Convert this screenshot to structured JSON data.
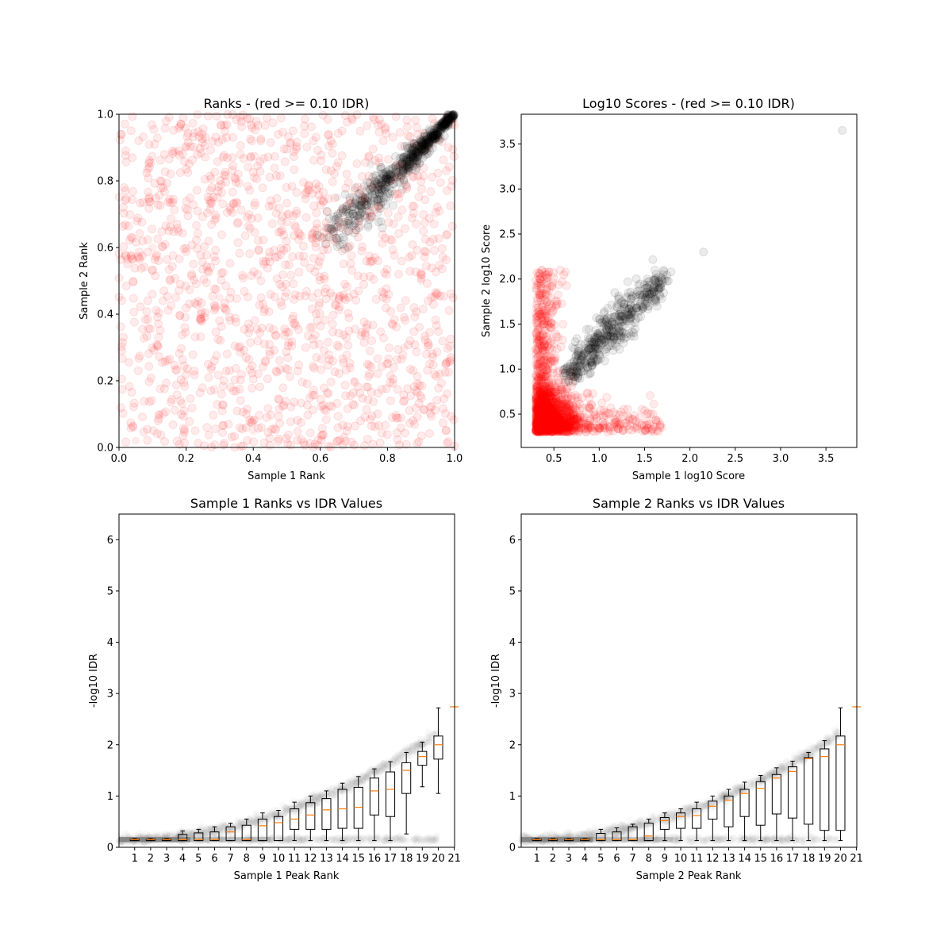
{
  "chart_data": [
    {
      "type": "scatter",
      "title": "Ranks - (red >= 0.10 IDR)",
      "xlabel": "Sample 1 Rank",
      "ylabel": "Sample 2 Rank",
      "xlim": [
        0,
        1
      ],
      "ylim": [
        0,
        1
      ],
      "xticks": [
        "0.0",
        "0.2",
        "0.4",
        "0.6",
        "0.8",
        "1.0"
      ],
      "yticks": [
        "0.0",
        "0.2",
        "0.4",
        "0.6",
        "0.8",
        "1.0"
      ],
      "series": [
        {
          "color": "#ff0000",
          "alpha": 0.08,
          "description_of_points": "peaks with IDR >= 0.10, spread uniformly over ranks"
        },
        {
          "color": "#000000",
          "alpha": 0.08,
          "description_of_points": "reproducible peaks concentrated along diagonal from (0.6,0.6) to (1,1)"
        }
      ],
      "points_red": [
        [
          0.05,
          0.02
        ],
        [
          0.12,
          0.1
        ],
        [
          0.3,
          0.45
        ],
        [
          0.5,
          0.7
        ],
        [
          0.2,
          0.9
        ],
        [
          0.7,
          0.2
        ],
        [
          0.9,
          0.5
        ],
        [
          0.4,
          0.05
        ],
        [
          0.85,
          0.3
        ],
        [
          0.1,
          0.6
        ]
      ],
      "points_black": [
        [
          0.62,
          0.63
        ],
        [
          0.7,
          0.72
        ],
        [
          0.8,
          0.78
        ],
        [
          0.9,
          0.92
        ],
        [
          0.97,
          0.98
        ],
        [
          0.75,
          0.85
        ],
        [
          0.85,
          0.8
        ],
        [
          0.65,
          0.75
        ]
      ]
    },
    {
      "type": "scatter",
      "title": "Log10 Scores - (red >= 0.10 IDR)",
      "xlabel": "Sample 1 log10 Score",
      "ylabel": "Sample 2 log10 Score",
      "xlim": [
        0.14,
        3.84
      ],
      "ylim": [
        0.13,
        3.83
      ],
      "xticks": [
        "0.5",
        "1.0",
        "1.5",
        "2.0",
        "2.5",
        "3.0",
        "3.5"
      ],
      "yticks": [
        "0.5",
        "1.0",
        "1.5",
        "2.0",
        "2.5",
        "3.0",
        "3.5"
      ],
      "points_black_outliers": [
        [
          3.68,
          3.65
        ],
        [
          2.15,
          2.3
        ]
      ],
      "red_cluster": {
        "x_range": [
          0.3,
          1.7
        ],
        "y_range": [
          0.3,
          2.1
        ]
      },
      "black_cluster": {
        "x_range": [
          0.6,
          1.75
        ],
        "y_range": [
          0.9,
          2.1
        ]
      }
    },
    {
      "type": "box",
      "title": "Sample 1 Ranks vs IDR Values",
      "xlabel": "Sample 1 Peak Rank",
      "ylabel": "-log10 IDR",
      "ylim": [
        0,
        6.5
      ],
      "yticks": [
        "0",
        "1",
        "2",
        "3",
        "4",
        "5",
        "6"
      ],
      "categories": [
        "1",
        "2",
        "3",
        "4",
        "5",
        "6",
        "7",
        "8",
        "9",
        "10",
        "11",
        "12",
        "13",
        "14",
        "15",
        "16",
        "17",
        "18",
        "19",
        "20",
        "21"
      ],
      "boxes": [
        {
          "q1": 0.13,
          "med": 0.15,
          "q3": 0.16,
          "wlo": 0.13,
          "whi": 0.17
        },
        {
          "q1": 0.13,
          "med": 0.15,
          "q3": 0.16,
          "wlo": 0.13,
          "whi": 0.17
        },
        {
          "q1": 0.13,
          "med": 0.15,
          "q3": 0.16,
          "wlo": 0.13,
          "whi": 0.17
        },
        {
          "q1": 0.13,
          "med": 0.15,
          "q3": 0.25,
          "wlo": 0.13,
          "whi": 0.32
        },
        {
          "q1": 0.13,
          "med": 0.15,
          "q3": 0.28,
          "wlo": 0.13,
          "whi": 0.35
        },
        {
          "q1": 0.13,
          "med": 0.15,
          "q3": 0.3,
          "wlo": 0.13,
          "whi": 0.4
        },
        {
          "q1": 0.13,
          "med": 0.3,
          "q3": 0.4,
          "wlo": 0.13,
          "whi": 0.47
        },
        {
          "q1": 0.13,
          "med": 0.15,
          "q3": 0.43,
          "wlo": 0.13,
          "whi": 0.55
        },
        {
          "q1": 0.13,
          "med": 0.42,
          "q3": 0.55,
          "wlo": 0.13,
          "whi": 0.67
        },
        {
          "q1": 0.13,
          "med": 0.48,
          "q3": 0.6,
          "wlo": 0.13,
          "whi": 0.72
        },
        {
          "q1": 0.35,
          "med": 0.55,
          "q3": 0.75,
          "wlo": 0.13,
          "whi": 0.88
        },
        {
          "q1": 0.35,
          "med": 0.63,
          "q3": 0.87,
          "wlo": 0.13,
          "whi": 1.0
        },
        {
          "q1": 0.35,
          "med": 0.73,
          "q3": 0.95,
          "wlo": 0.13,
          "whi": 1.1
        },
        {
          "q1": 0.37,
          "med": 0.75,
          "q3": 1.13,
          "wlo": 0.13,
          "whi": 1.25
        },
        {
          "q1": 0.37,
          "med": 0.78,
          "q3": 1.17,
          "wlo": 0.13,
          "whi": 1.38
        },
        {
          "q1": 0.63,
          "med": 1.1,
          "q3": 1.35,
          "wlo": 0.13,
          "whi": 1.53
        },
        {
          "q1": 0.6,
          "med": 1.13,
          "q3": 1.47,
          "wlo": 0.13,
          "whi": 1.67
        },
        {
          "q1": 1.05,
          "med": 1.5,
          "q3": 1.65,
          "wlo": 0.26,
          "whi": 1.85
        },
        {
          "q1": 1.6,
          "med": 1.77,
          "q3": 1.87,
          "wlo": 1.18,
          "whi": 2.05
        },
        {
          "q1": 1.72,
          "med": 2.0,
          "q3": 2.17,
          "wlo": 1.05,
          "whi": 2.72
        },
        {
          "q1": 2.74,
          "med": 2.74,
          "q3": 2.74,
          "wlo": 2.74,
          "whi": 2.74
        }
      ]
    },
    {
      "type": "box",
      "title": "Sample 2 Ranks vs IDR Values",
      "xlabel": "Sample 2 Peak Rank",
      "ylabel": "-log10 IDR",
      "ylim": [
        0,
        6.5
      ],
      "yticks": [
        "0",
        "1",
        "2",
        "3",
        "4",
        "5",
        "6"
      ],
      "categories": [
        "1",
        "2",
        "3",
        "4",
        "5",
        "6",
        "7",
        "8",
        "9",
        "10",
        "11",
        "12",
        "13",
        "14",
        "15",
        "16",
        "17",
        "18",
        "19",
        "20",
        "21"
      ],
      "boxes": [
        {
          "q1": 0.13,
          "med": 0.15,
          "q3": 0.16,
          "wlo": 0.13,
          "whi": 0.17
        },
        {
          "q1": 0.13,
          "med": 0.15,
          "q3": 0.16,
          "wlo": 0.13,
          "whi": 0.17
        },
        {
          "q1": 0.13,
          "med": 0.15,
          "q3": 0.16,
          "wlo": 0.13,
          "whi": 0.17
        },
        {
          "q1": 0.13,
          "med": 0.15,
          "q3": 0.16,
          "wlo": 0.13,
          "whi": 0.17
        },
        {
          "q1": 0.13,
          "med": 0.15,
          "q3": 0.27,
          "wlo": 0.13,
          "whi": 0.35
        },
        {
          "q1": 0.13,
          "med": 0.15,
          "q3": 0.3,
          "wlo": 0.13,
          "whi": 0.38
        },
        {
          "q1": 0.13,
          "med": 0.15,
          "q3": 0.4,
          "wlo": 0.13,
          "whi": 0.45
        },
        {
          "q1": 0.13,
          "med": 0.22,
          "q3": 0.47,
          "wlo": 0.13,
          "whi": 0.55
        },
        {
          "q1": 0.35,
          "med": 0.52,
          "q3": 0.58,
          "wlo": 0.13,
          "whi": 0.67
        },
        {
          "q1": 0.37,
          "med": 0.6,
          "q3": 0.67,
          "wlo": 0.13,
          "whi": 0.75
        },
        {
          "q1": 0.37,
          "med": 0.62,
          "q3": 0.75,
          "wlo": 0.13,
          "whi": 0.88
        },
        {
          "q1": 0.55,
          "med": 0.8,
          "q3": 0.9,
          "wlo": 0.13,
          "whi": 1.0
        },
        {
          "q1": 0.4,
          "med": 0.92,
          "q3": 1.0,
          "wlo": 0.13,
          "whi": 1.13
        },
        {
          "q1": 0.6,
          "med": 1.05,
          "q3": 1.13,
          "wlo": 0.13,
          "whi": 1.27
        },
        {
          "q1": 0.43,
          "med": 1.15,
          "q3": 1.28,
          "wlo": 0.13,
          "whi": 1.4
        },
        {
          "q1": 0.65,
          "med": 1.35,
          "q3": 1.42,
          "wlo": 0.13,
          "whi": 1.55
        },
        {
          "q1": 0.57,
          "med": 1.48,
          "q3": 1.57,
          "wlo": 0.13,
          "whi": 1.68
        },
        {
          "q1": 0.45,
          "med": 1.73,
          "q3": 1.75,
          "wlo": 0.13,
          "whi": 1.85
        },
        {
          "q1": 0.33,
          "med": 1.77,
          "q3": 1.92,
          "wlo": 0.13,
          "whi": 2.08
        },
        {
          "q1": 0.33,
          "med": 2.0,
          "q3": 2.17,
          "wlo": 0.13,
          "whi": 2.72
        },
        {
          "q1": 2.74,
          "med": 2.74,
          "q3": 2.74,
          "wlo": 2.74,
          "whi": 2.74
        }
      ]
    }
  ]
}
